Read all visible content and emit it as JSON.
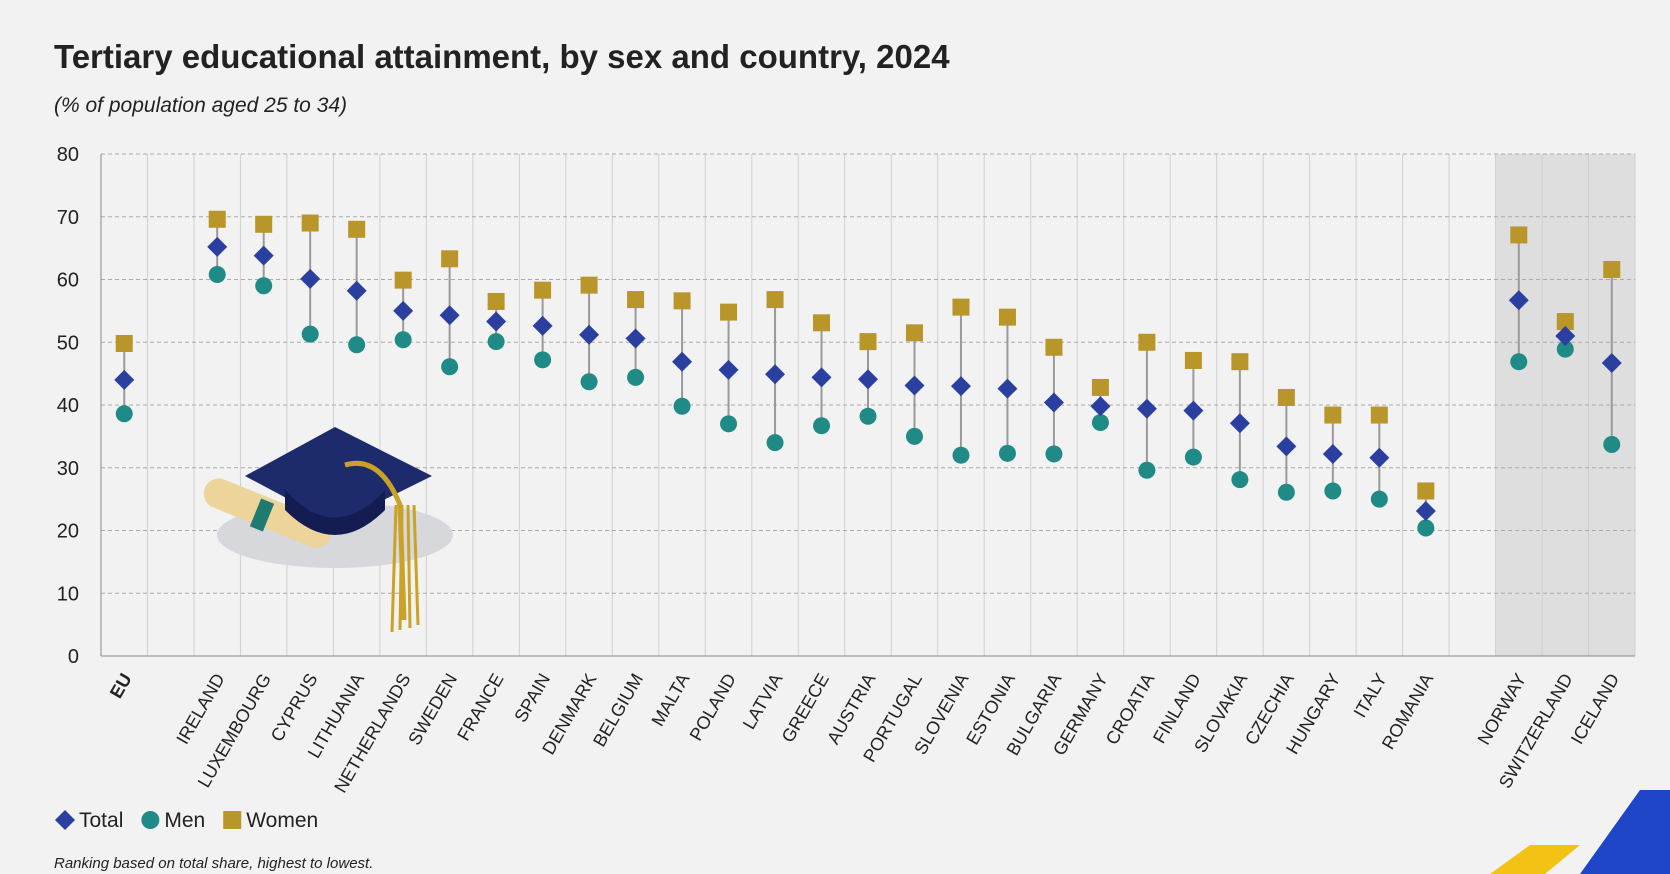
{
  "chart_data": {
    "type": "dot",
    "title": "Tertiary educational attainment, by sex and country, 2024",
    "subtitle": "(% of population aged 25 to 34)",
    "footnote": "Ranking based on total share, highest to lowest.",
    "categories": [
      "EU",
      null,
      "IRELAND",
      "LUXEMBOURG",
      "CYPRUS",
      "LITHUANIA",
      "NETHERLANDS",
      "SWEDEN",
      "FRANCE",
      "SPAIN",
      "DENMARK",
      "BELGIUM",
      "MALTA",
      "POLAND",
      "LATVIA",
      "GREECE",
      "AUSTRIA",
      "PORTUGAL",
      "SLOVENIA",
      "ESTONIA",
      "BULGARIA",
      "GERMANY",
      "CROATIA",
      "FINLAND",
      "SLOVAKIA",
      "CZECHIA",
      "HUNGARY",
      "ITALY",
      "ROMANIA",
      null,
      "NORWAY",
      "SWITZERLAND",
      "ICELAND"
    ],
    "series": [
      {
        "name": "Total",
        "color": "#2b3fa0",
        "marker": "diamond",
        "values": [
          44,
          null,
          65.2,
          63.8,
          60.1,
          58.2,
          55,
          54.3,
          53.3,
          52.6,
          51.2,
          50.6,
          46.9,
          45.6,
          44.9,
          44.4,
          44.1,
          43.1,
          43,
          42.6,
          40.4,
          39.8,
          39.4,
          39.1,
          37.1,
          33.4,
          32.2,
          31.6,
          23.1,
          null,
          56.7,
          51,
          46.7
        ]
      },
      {
        "name": "Men",
        "color": "#1f8a86",
        "marker": "circle",
        "values": [
          38.6,
          null,
          60.8,
          59,
          51.3,
          49.6,
          50.4,
          46.1,
          50.1,
          47.2,
          43.7,
          44.4,
          39.8,
          37,
          34,
          36.7,
          38.2,
          35,
          32,
          32.3,
          32.2,
          37.2,
          29.6,
          31.7,
          28.1,
          26.1,
          26.3,
          25,
          20.4,
          null,
          46.9,
          48.9,
          33.7
        ]
      },
      {
        "name": "Women",
        "color": "#b8962a",
        "marker": "square",
        "values": [
          49.8,
          null,
          69.6,
          68.8,
          69,
          68,
          59.9,
          63.3,
          56.5,
          58.3,
          59.1,
          56.8,
          56.6,
          54.8,
          56.8,
          53.1,
          50.1,
          51.5,
          55.6,
          54,
          49.2,
          42.8,
          50,
          47.1,
          46.9,
          41.2,
          38.4,
          38.4,
          26.3,
          null,
          67.1,
          53.3,
          61.6
        ]
      }
    ],
    "ylim": [
      0,
      80
    ],
    "yticks": [
      0,
      10,
      20,
      30,
      40,
      50,
      60,
      70,
      80
    ],
    "grid": true
  }
}
